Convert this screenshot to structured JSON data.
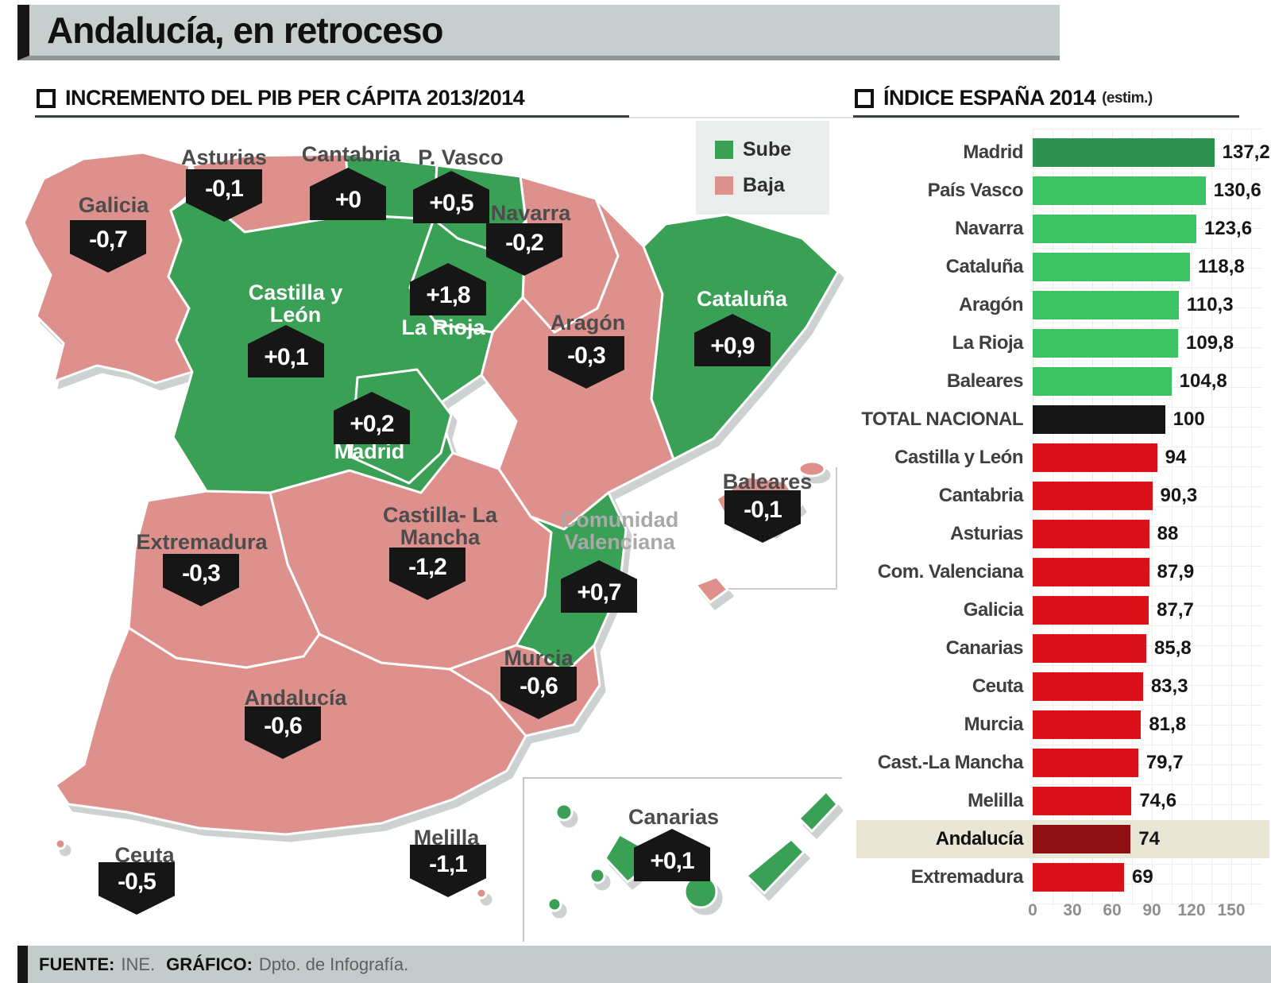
{
  "title": "Andalucía, en retroceso",
  "sections": {
    "map_header": "INCREMENTO DEL PIB PER CÁPITA 2013/2014",
    "chart_header": "ÍNDICE ESPAÑA 2014",
    "chart_header_note": "(estim.)"
  },
  "legend": {
    "up_label": "Sube",
    "down_label": "Baja"
  },
  "map": {
    "colors": {
      "sube": "#3aa055",
      "baja": "#dd908c"
    },
    "regions": [
      {
        "key": "galicia",
        "name": "Galicia",
        "delta": "-0,7",
        "trend": "down"
      },
      {
        "key": "asturias",
        "name": "Asturias",
        "delta": "-0,1",
        "trend": "down"
      },
      {
        "key": "cantabria",
        "name": "Cantabria",
        "delta": "+0",
        "trend": "up"
      },
      {
        "key": "pais-vasco",
        "name": "P. Vasco",
        "delta": "+0,5",
        "trend": "up"
      },
      {
        "key": "navarra",
        "name": "Navarra",
        "delta": "-0,2",
        "trend": "down"
      },
      {
        "key": "la-rioja",
        "name": "La Rioja",
        "delta": "+1,8",
        "trend": "up"
      },
      {
        "key": "castilla-y-leon",
        "name": "Castilla y León",
        "delta": "+0,1",
        "trend": "up"
      },
      {
        "key": "aragon",
        "name": "Aragón",
        "delta": "-0,3",
        "trend": "down"
      },
      {
        "key": "cataluna",
        "name": "Cataluña",
        "delta": "+0,9",
        "trend": "up"
      },
      {
        "key": "madrid",
        "name": "Madrid",
        "delta": "+0,2",
        "trend": "up"
      },
      {
        "key": "extremadura",
        "name": "Extremadura",
        "delta": "-0,3",
        "trend": "down"
      },
      {
        "key": "castilla-la-mancha",
        "name": "Castilla- La Mancha",
        "delta": "-1,2",
        "trend": "down"
      },
      {
        "key": "comunidad-valenciana",
        "name": "Comunidad Valenciana",
        "delta": "+0,7",
        "trend": "up"
      },
      {
        "key": "murcia",
        "name": "Murcia",
        "delta": "-0,6",
        "trend": "down"
      },
      {
        "key": "andalucia",
        "name": "Andalucía",
        "delta": "-0,6",
        "trend": "down"
      },
      {
        "key": "baleares",
        "name": "Baleares",
        "delta": "-0,1",
        "trend": "down"
      },
      {
        "key": "canarias",
        "name": "Canarias",
        "delta": "+0,1",
        "trend": "up"
      },
      {
        "key": "ceuta",
        "name": "Ceuta",
        "delta": "-0,5",
        "trend": "down"
      },
      {
        "key": "melilla",
        "name": "Melilla",
        "delta": "-1,1",
        "trend": "down"
      }
    ]
  },
  "chart_data": {
    "type": "bar",
    "orientation": "horizontal",
    "title": "ÍNDICE ESPAÑA 2014 (estim.)",
    "categories": [
      "Madrid",
      "País Vasco",
      "Navarra",
      "Cataluña",
      "Aragón",
      "La Rioja",
      "Baleares",
      "TOTAL NACIONAL",
      "Castilla y León",
      "Cantabria",
      "Asturias",
      "Com. Valenciana",
      "Galicia",
      "Canarias",
      "Ceuta",
      "Murcia",
      "Cast.-La Mancha",
      "Melilla",
      "Andalucía",
      "Extremadura"
    ],
    "values": [
      137.2,
      130.6,
      123.6,
      118.8,
      110.3,
      109.8,
      104.8,
      100,
      94,
      90.3,
      88,
      87.9,
      87.7,
      85.8,
      83.3,
      81.8,
      79.7,
      74.6,
      74,
      69
    ],
    "value_labels": [
      "137,2",
      "130,6",
      "123,6",
      "118,8",
      "110,3",
      "109,8",
      "104,8",
      "100",
      "94",
      "90,3",
      "88",
      "87,9",
      "87,7",
      "85,8",
      "83,3",
      "81,8",
      "79,7",
      "74,6",
      "74",
      "69"
    ],
    "bar_colors": [
      "darkgreen",
      "green",
      "green",
      "green",
      "green",
      "green",
      "green",
      "black",
      "red",
      "red",
      "red",
      "red",
      "red",
      "red",
      "red",
      "red",
      "red",
      "red",
      "darkred",
      "red"
    ],
    "palette": {
      "darkgreen": "#2e9150",
      "green": "#3cc464",
      "black": "#151515",
      "red": "#da1118",
      "darkred": "#8e1013"
    },
    "highlight": "Andalucía",
    "xlabel": "",
    "ylabel": "",
    "xlim": [
      0,
      150
    ],
    "ticks": [
      0,
      30,
      60,
      90,
      120,
      150
    ],
    "grid": true,
    "legend_position": "none"
  },
  "footer": {
    "source_label": "FUENTE:",
    "source_value": "INE.",
    "credit_label": "GRÁFICO:",
    "credit_value": "Dpto. de Infografía."
  }
}
